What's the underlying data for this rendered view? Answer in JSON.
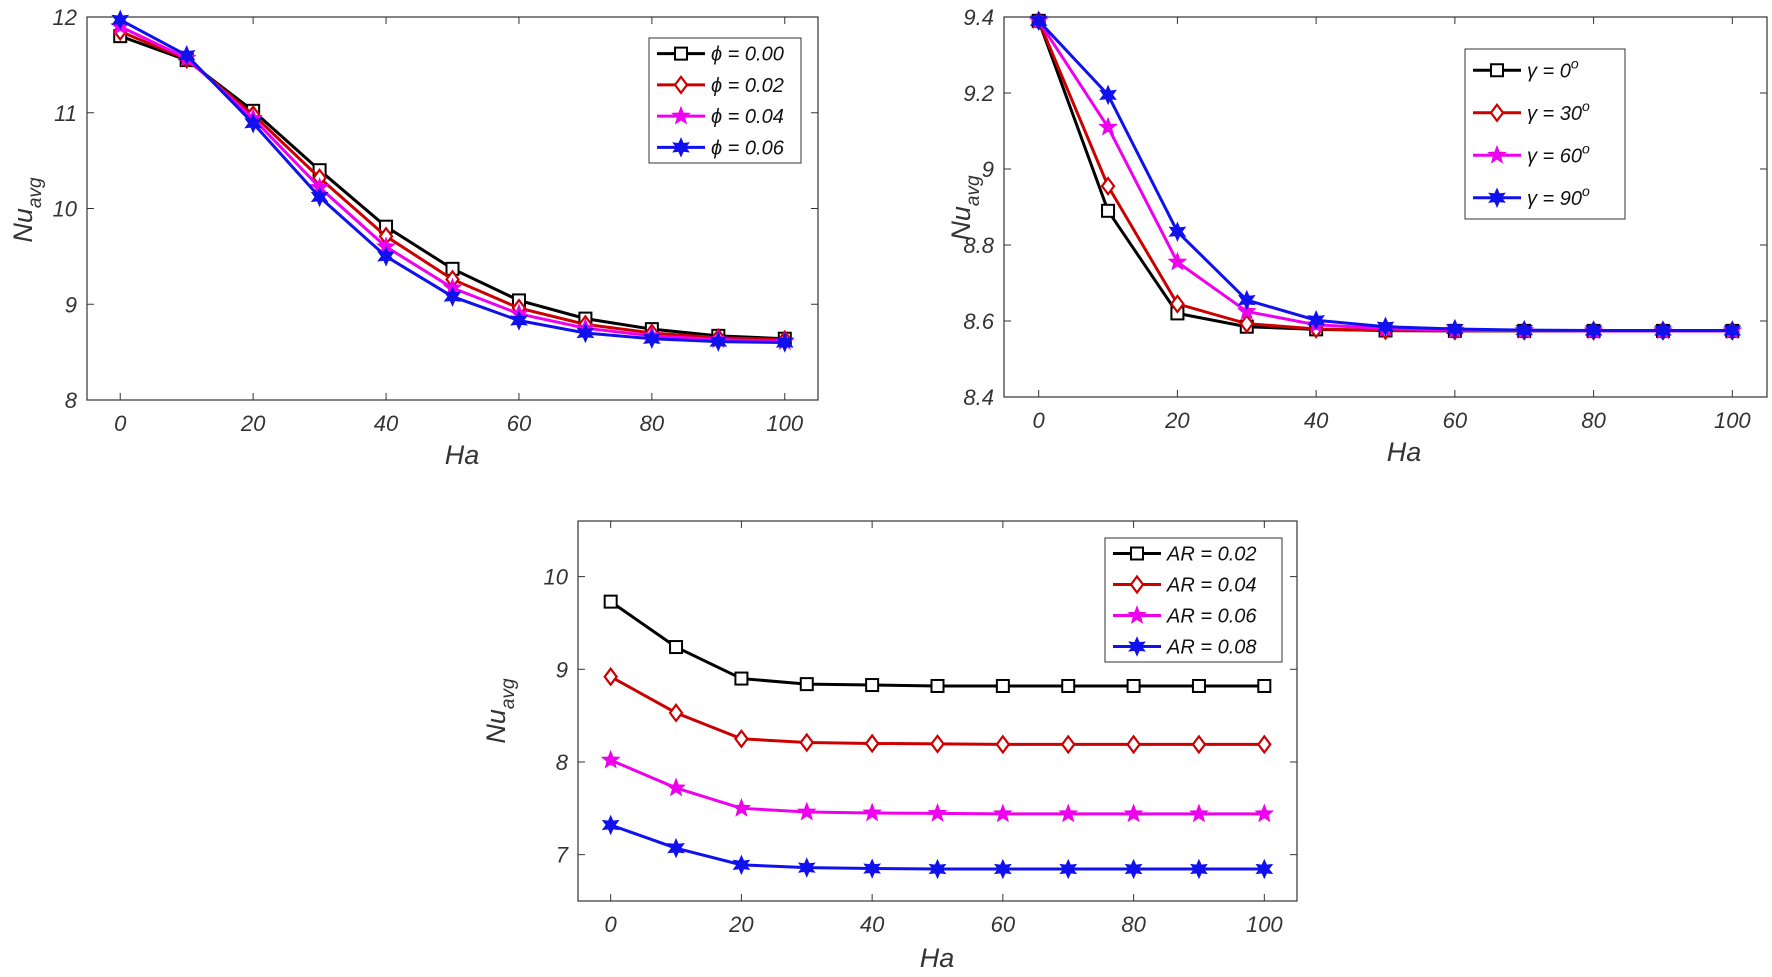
{
  "chart_data": [
    {
      "type": "line",
      "xlabel": "Ha",
      "ylabel": "Nu",
      "ylabel_sub": "avg",
      "xlim": [
        -5,
        105
      ],
      "ylim": [
        8,
        12
      ],
      "xticks": [
        "0",
        "20",
        "40",
        "60",
        "80",
        "100"
      ],
      "yticks": [
        "8",
        "9",
        "10",
        "11",
        "12"
      ],
      "legend_position": "top-right",
      "x": [
        0,
        10,
        20,
        30,
        40,
        50,
        60,
        70,
        80,
        90,
        100
      ],
      "series": [
        {
          "name": "ϕ = 0.00",
          "color": "#000000",
          "marker": "square",
          "values": [
            11.8,
            11.55,
            11.02,
            10.4,
            9.81,
            9.37,
            9.04,
            8.85,
            8.74,
            8.67,
            8.64
          ]
        },
        {
          "name": "ϕ = 0.02",
          "color": "#cc0000",
          "marker": "diamond",
          "values": [
            11.85,
            11.56,
            10.98,
            10.32,
            9.71,
            9.26,
            8.96,
            8.79,
            8.7,
            8.65,
            8.63
          ]
        },
        {
          "name": "ϕ = 0.04",
          "color": "#ee00ee",
          "marker": "star",
          "values": [
            11.9,
            11.57,
            10.94,
            10.22,
            9.6,
            9.17,
            8.9,
            8.75,
            8.67,
            8.63,
            8.61
          ]
        },
        {
          "name": "ϕ = 0.06",
          "color": "#1111ee",
          "marker": "hexstar",
          "values": [
            11.97,
            11.6,
            10.89,
            10.12,
            9.5,
            9.08,
            8.83,
            8.7,
            8.64,
            8.61,
            8.6
          ]
        }
      ]
    },
    {
      "type": "line",
      "xlabel": "Ha",
      "ylabel": "Nu",
      "ylabel_sub": "avg",
      "xlim": [
        -5,
        105
      ],
      "ylim": [
        8.4,
        9.4
      ],
      "xticks": [
        "0",
        "20",
        "40",
        "60",
        "80",
        "100"
      ],
      "yticks": [
        "8.4",
        "8.6",
        "8.8",
        "9",
        "9.2",
        "9.4"
      ],
      "legend_position": "top-right",
      "x": [
        0,
        10,
        20,
        30,
        40,
        50,
        60,
        70,
        80,
        90,
        100
      ],
      "series": [
        {
          "name": "γ = 0",
          "name_sup": "o",
          "color": "#000000",
          "marker": "square",
          "values": [
            9.39,
            8.89,
            8.62,
            8.585,
            8.578,
            8.575,
            8.574,
            8.574,
            8.574,
            8.574,
            8.574
          ]
        },
        {
          "name": "γ = 30",
          "name_sup": "o",
          "color": "#cc0000",
          "marker": "diamond",
          "values": [
            9.39,
            8.955,
            8.645,
            8.593,
            8.579,
            8.575,
            8.574,
            8.574,
            8.574,
            8.574,
            8.574
          ]
        },
        {
          "name": "γ = 60",
          "name_sup": "o",
          "color": "#ee00ee",
          "marker": "star",
          "values": [
            9.39,
            9.11,
            8.755,
            8.625,
            8.59,
            8.58,
            8.576,
            8.575,
            8.574,
            8.574,
            8.574
          ]
        },
        {
          "name": "γ = 90",
          "name_sup": "o",
          "color": "#1111ee",
          "marker": "hexstar",
          "values": [
            9.39,
            9.195,
            8.835,
            8.655,
            8.602,
            8.585,
            8.579,
            8.576,
            8.575,
            8.575,
            8.575
          ]
        }
      ]
    },
    {
      "type": "line",
      "xlabel": "Ha",
      "ylabel": "Nu",
      "ylabel_sub": "avg",
      "xlim": [
        -5,
        105
      ],
      "ylim": [
        6.5,
        10.6
      ],
      "xticks": [
        "0",
        "20",
        "40",
        "60",
        "80",
        "100"
      ],
      "yticks": [
        "7",
        "8",
        "9",
        "10"
      ],
      "legend_position": "top-right",
      "x": [
        0,
        10,
        20,
        30,
        40,
        50,
        60,
        70,
        80,
        90,
        100
      ],
      "series": [
        {
          "name": "AR = 0.02",
          "color": "#000000",
          "marker": "square",
          "values": [
            9.73,
            9.24,
            8.9,
            8.84,
            8.83,
            8.82,
            8.82,
            8.82,
            8.82,
            8.82,
            8.82
          ]
        },
        {
          "name": "AR = 0.04",
          "color": "#cc0000",
          "marker": "diamond",
          "values": [
            8.92,
            8.53,
            8.25,
            8.21,
            8.2,
            8.195,
            8.19,
            8.19,
            8.19,
            8.19,
            8.19
          ]
        },
        {
          "name": "AR = 0.06",
          "color": "#ee00ee",
          "marker": "star",
          "values": [
            8.02,
            7.72,
            7.5,
            7.46,
            7.45,
            7.445,
            7.44,
            7.44,
            7.44,
            7.44,
            7.44
          ]
        },
        {
          "name": "AR = 0.08",
          "color": "#1111ee",
          "marker": "hexstar",
          "values": [
            7.32,
            7.07,
            6.89,
            6.86,
            6.85,
            6.845,
            6.845,
            6.845,
            6.845,
            6.845,
            6.845
          ]
        }
      ]
    }
  ]
}
